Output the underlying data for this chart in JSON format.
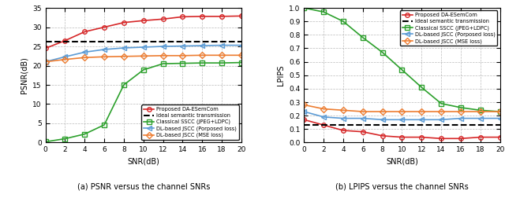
{
  "snr": [
    0,
    2,
    4,
    6,
    8,
    10,
    12,
    14,
    16,
    18,
    20
  ],
  "psnr_proposed": [
    24.5,
    26.5,
    28.8,
    30.0,
    31.2,
    31.7,
    32.1,
    32.7,
    32.8,
    32.8,
    32.9
  ],
  "psnr_ideal": 26.3,
  "psnr_classical": [
    0.2,
    1.0,
    2.2,
    4.6,
    15.0,
    18.9,
    20.5,
    20.6,
    20.7,
    20.7,
    20.8
  ],
  "psnr_dl_proposed": [
    21.0,
    22.3,
    23.5,
    24.2,
    24.6,
    24.8,
    25.0,
    25.1,
    25.2,
    25.3,
    25.3
  ],
  "psnr_dl_mse": [
    21.0,
    21.6,
    22.1,
    22.3,
    22.4,
    22.5,
    22.6,
    22.6,
    22.7,
    22.7,
    22.7
  ],
  "lpips_proposed": [
    0.17,
    0.13,
    0.09,
    0.08,
    0.05,
    0.04,
    0.04,
    0.03,
    0.03,
    0.04,
    0.04
  ],
  "lpips_ideal": 0.13,
  "lpips_classical": [
    1.0,
    0.97,
    0.9,
    0.78,
    0.67,
    0.54,
    0.41,
    0.29,
    0.26,
    0.24,
    0.23
  ],
  "lpips_dl_proposed": [
    0.23,
    0.19,
    0.18,
    0.18,
    0.17,
    0.17,
    0.17,
    0.17,
    0.18,
    0.18,
    0.18
  ],
  "lpips_dl_mse": [
    0.28,
    0.25,
    0.24,
    0.23,
    0.23,
    0.23,
    0.23,
    0.23,
    0.23,
    0.23,
    0.23
  ],
  "color_proposed": "#d62728",
  "color_classical": "#2ca02c",
  "color_dl_proposed": "#5b9bd5",
  "color_dl_mse": "#ed7d31",
  "color_ideal": "#000000",
  "label_proposed": "Proposed DA-ESemCom",
  "label_ideal": "Ideal semantic transmission",
  "label_classical": "Classical SSCC (JPEG+LDPC)",
  "label_dl_proposed": "DL-based JSCC (Porposed loss)",
  "label_dl_mse": "DL-based JSCC (MSE loss)",
  "xlabel": "SNR(dB)",
  "ylabel_psnr": "PSNR(dB)",
  "ylabel_lpips": "LPIPS",
  "title_psnr": "(a) PSNR versus the channel SNRs",
  "title_lpips": "(b) LPIPS versus the channel SNRs",
  "psnr_ylim": [
    0,
    35
  ],
  "lpips_ylim": [
    0,
    1.0
  ],
  "psnr_yticks": [
    0,
    5,
    10,
    15,
    20,
    25,
    30,
    35
  ],
  "lpips_yticks": [
    0.0,
    0.1,
    0.2,
    0.3,
    0.4,
    0.5,
    0.6,
    0.7,
    0.8,
    0.9,
    1.0
  ],
  "xticks": [
    0,
    2,
    4,
    6,
    8,
    10,
    12,
    14,
    16,
    18,
    20
  ]
}
